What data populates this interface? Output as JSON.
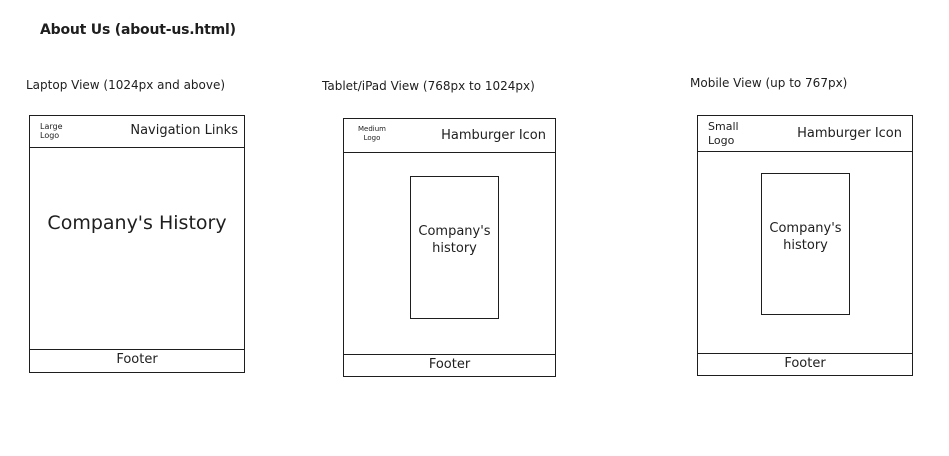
{
  "page_title": "About Us (about-us.html)",
  "views": {
    "laptop": {
      "label": "Laptop View (1024px and above)",
      "logo": "Large\nLogo",
      "nav": "Navigation Links",
      "content": "Company's History",
      "footer": "Footer"
    },
    "tablet": {
      "label": "Tablet/iPad View (768px to 1024px)",
      "logo": "Medium\nLogo",
      "nav": "Hamburger Icon",
      "content": "Company's\nhistory",
      "footer": "Footer"
    },
    "mobile": {
      "label": "Mobile View (up to 767px)",
      "logo": "Small\nLogo",
      "nav": "Hamburger Icon",
      "content": "Company's\nhistory",
      "footer": "Footer"
    }
  }
}
